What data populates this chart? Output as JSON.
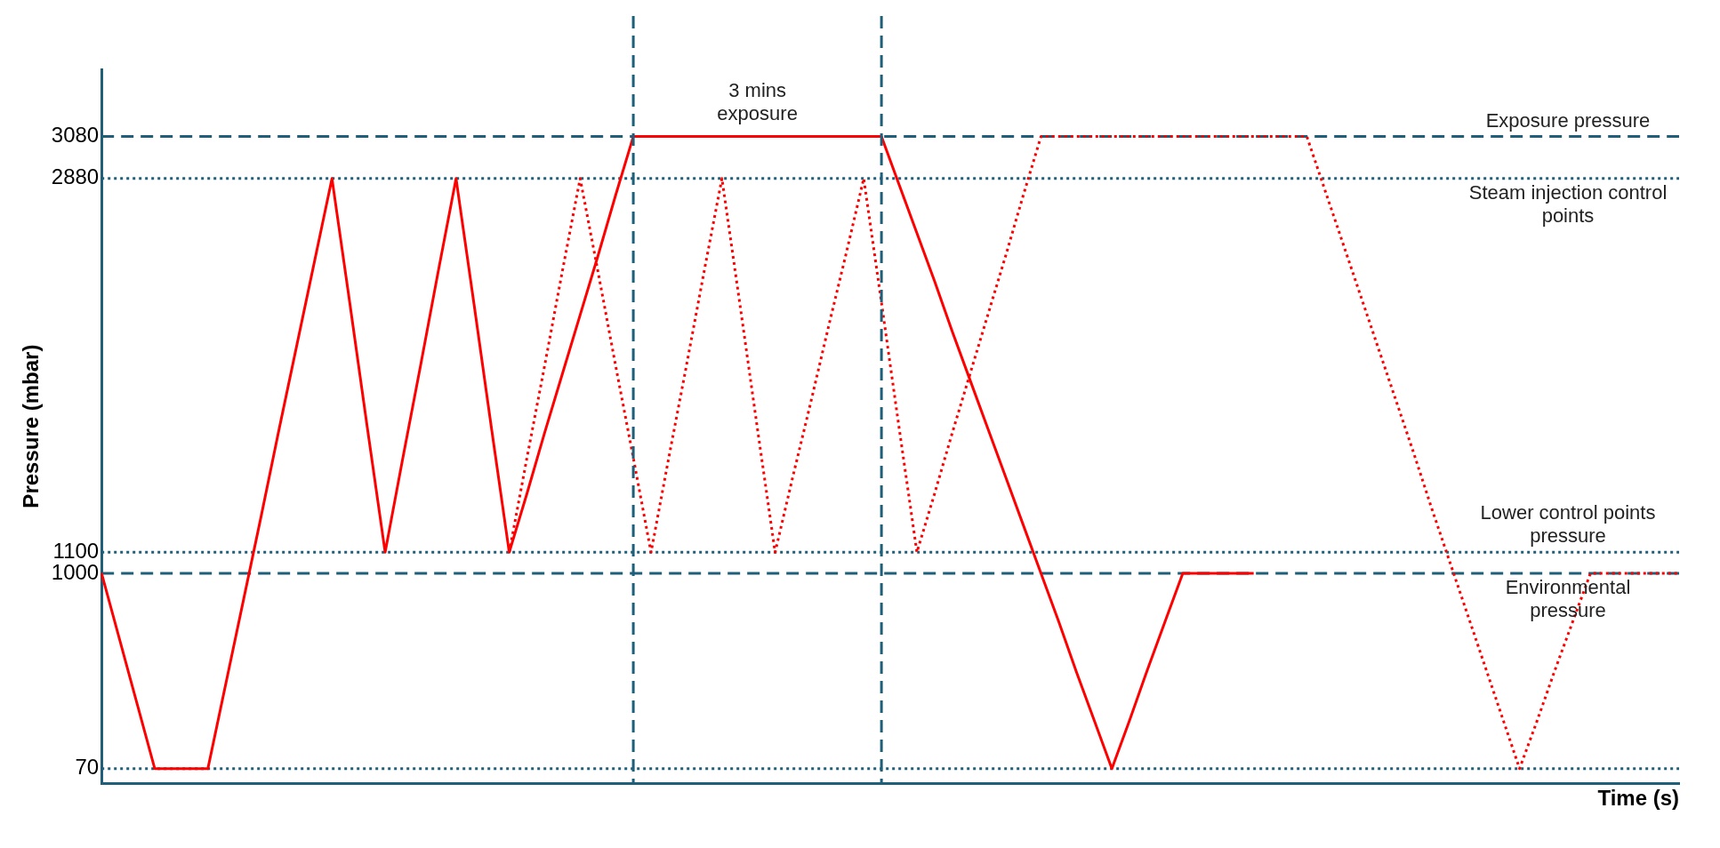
{
  "chart_data": {
    "type": "line",
    "xlabel": "Time (s)",
    "ylabel": "Pressure (mbar)",
    "ylim": [
      0,
      3400
    ],
    "yticks": [
      70,
      1000,
      1100,
      2880,
      3080
    ],
    "tick_labels": "y",
    "grid": false,
    "legend": false,
    "marker": "none",
    "categories": [
      null,
      null,
      null,
      null,
      null,
      null,
      null,
      null,
      null,
      null,
      null,
      null,
      null,
      null,
      null,
      null,
      null,
      null,
      null,
      null,
      null,
      null,
      null,
      null,
      null,
      null,
      null,
      null,
      null,
      null,
      null,
      null,
      null,
      null,
      null,
      null,
      null,
      null,
      null,
      null,
      null,
      null,
      null,
      null,
      null,
      null,
      null,
      null,
      null,
      null,
      null,
      null,
      null,
      null,
      null,
      null,
      null,
      null,
      null,
      null,
      null,
      null,
      null,
      null,
      null,
      null,
      null,
      null,
      null,
      null,
      null,
      null,
      null,
      null,
      null,
      null,
      null,
      null,
      null,
      null,
      null,
      null,
      null,
      null,
      null,
      null,
      null,
      null,
      null,
      null
    ],
    "series": [
      {
        "color": "#ff0000",
        "line_style": "solid",
        "values": [
          1000,
          690,
          380,
          70,
          70,
          70,
          70,
          470,
          870,
          1270,
          1680,
          2080,
          2480,
          2880,
          2290,
          1690,
          1100,
          1550,
          1990,
          2440,
          2880,
          2290,
          1690,
          1100,
          1380,
          1670,
          1950,
          2230,
          2510,
          2800,
          3080,
          3080,
          3080,
          3080,
          3080,
          3080,
          3080,
          3080,
          3080,
          3080,
          3080,
          3080,
          3080,
          3080,
          3080,
          2850,
          2620,
          2390,
          2150,
          1920,
          1690,
          1460,
          1230,
          1000,
          770,
          530,
          300,
          70,
          300,
          540,
          770,
          1000,
          1000,
          1000,
          1000,
          1000,
          null,
          null,
          null,
          null,
          null,
          null,
          null,
          null,
          null,
          null,
          null,
          null,
          null,
          null,
          null,
          null,
          null,
          null,
          null,
          null,
          null,
          null,
          null,
          null
        ]
      },
      {
        "color": "#ff0000",
        "line_style": "dotted",
        "values": [
          null,
          null,
          null,
          null,
          null,
          null,
          null,
          null,
          null,
          null,
          null,
          null,
          null,
          null,
          null,
          null,
          null,
          null,
          null,
          null,
          null,
          null,
          null,
          1100,
          1550,
          1990,
          2440,
          2880,
          2440,
          1990,
          1550,
          1100,
          1550,
          1990,
          2440,
          2880,
          2290,
          1690,
          1100,
          1460,
          1810,
          2170,
          2520,
          2880,
          2290,
          1690,
          1100,
          1380,
          1670,
          1950,
          2230,
          2510,
          2800,
          3080,
          3080,
          3080,
          3080,
          3080,
          3080,
          3080,
          3080,
          3080,
          3080,
          3080,
          3080,
          3080,
          3080,
          3080,
          3080,
          2830,
          2580,
          2330,
          2080,
          1830,
          1580,
          1320,
          1070,
          820,
          570,
          320,
          70,
          300,
          540,
          770,
          1000,
          1000,
          1000,
          1000,
          1000,
          1000
        ]
      }
    ],
    "ref_lines": [
      {
        "axis": "y",
        "value": 3080,
        "label": "Exposure pressure",
        "line_style": "dashed",
        "color": "#1f5f7a"
      },
      {
        "axis": "y",
        "value": 2880,
        "label": "Steam injection control points",
        "line_style": "dotted",
        "color": "#1f5f7a"
      },
      {
        "axis": "y",
        "value": 1100,
        "label": "Lower control points pressure",
        "line_style": "dotted",
        "color": "#1f5f7a"
      },
      {
        "axis": "y",
        "value": 1000,
        "label": "Environmental pressure",
        "line_style": "dashed",
        "color": "#1f5f7a"
      },
      {
        "axis": "y",
        "value": 70,
        "line_style": "dotted",
        "color": "#1f5f7a"
      }
    ],
    "annotations": [
      "3 mins exposure"
    ]
  }
}
